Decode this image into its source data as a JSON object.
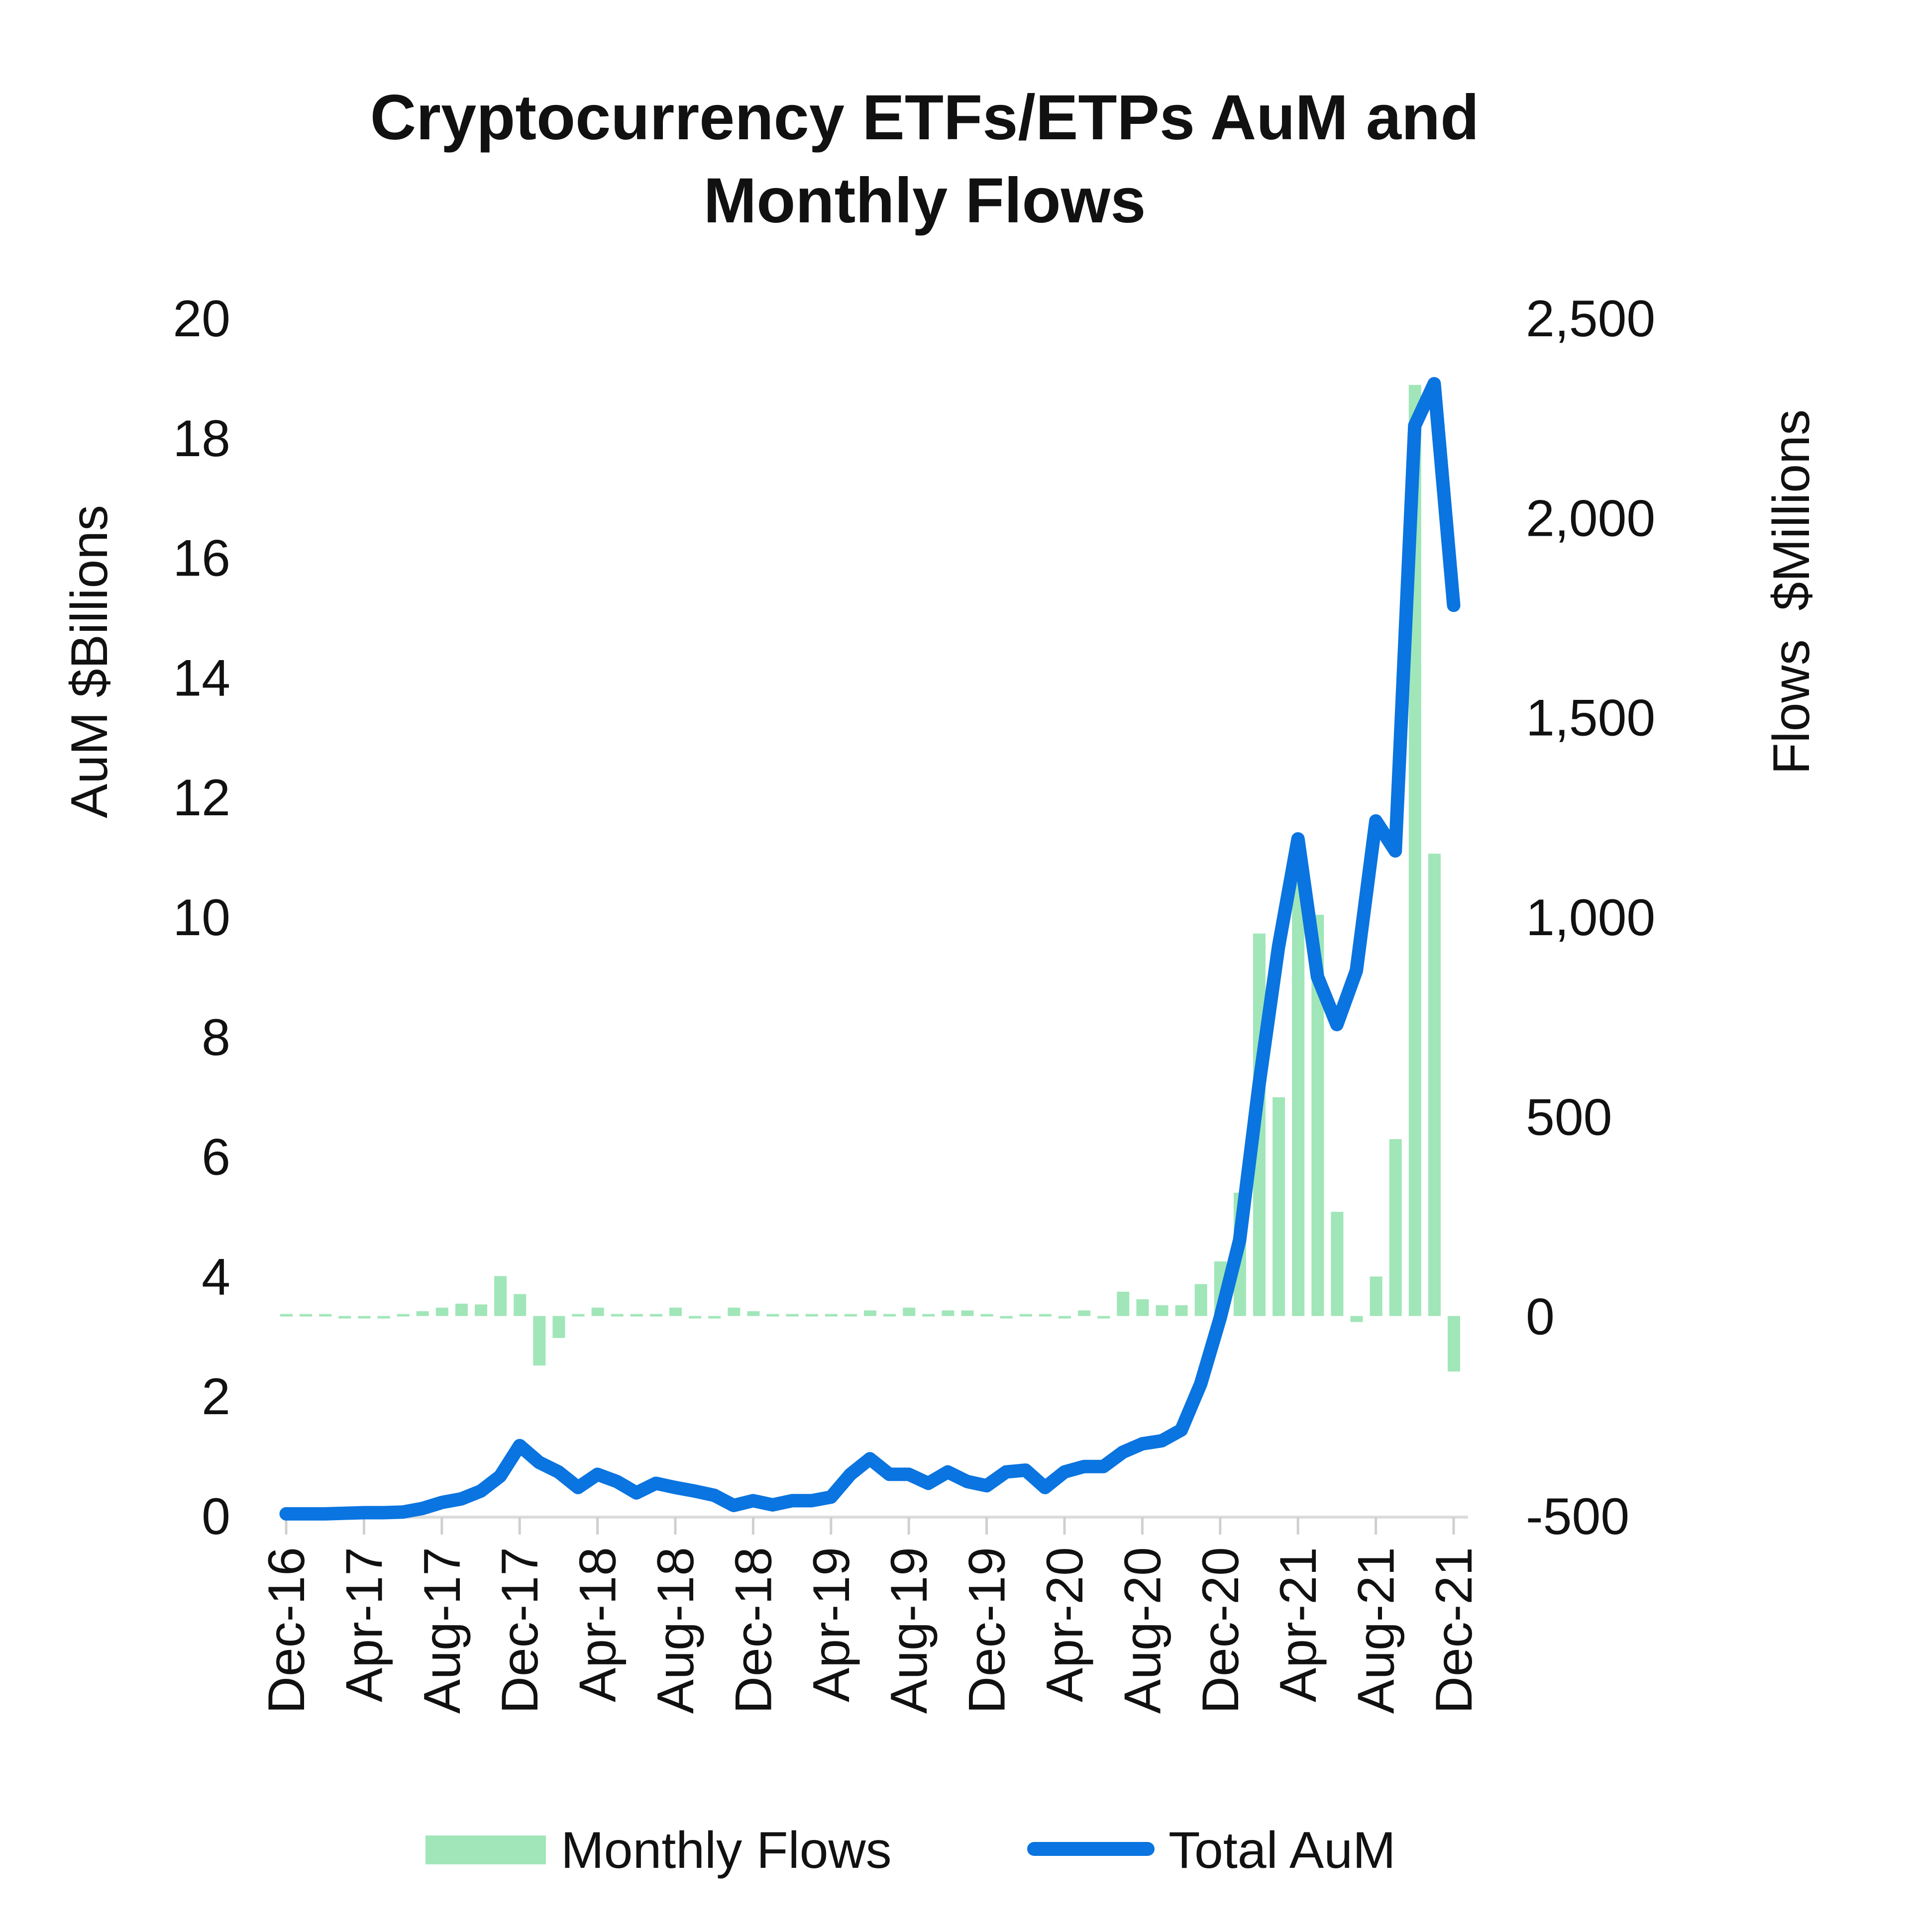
{
  "chart_data": {
    "type": "bar+line",
    "title": [
      "Cryptocurrency ETFs/ETPs AuM and",
      "Monthly Flows"
    ],
    "ylabel_left": "AuM $Billions",
    "ylabel_right": "Flows  $Millions",
    "ylim_left": [
      0,
      20
    ],
    "ylim_right": [
      -500,
      2500
    ],
    "yticks_left": [
      "0",
      "2",
      "4",
      "6",
      "8",
      "10",
      "12",
      "14",
      "16",
      "18",
      "20"
    ],
    "yticks_right": [
      "-500",
      "0",
      "500",
      "1,000",
      "1,500",
      "2,000",
      "2,500"
    ],
    "xtick_labels": [
      "Dec-16",
      "Apr-17",
      "Aug-17",
      "Dec-17",
      "Apr-18",
      "Aug-18",
      "Dec-18",
      "Apr-19",
      "Aug-19",
      "Dec-19",
      "Apr-20",
      "Aug-20",
      "Dec-20",
      "Apr-21",
      "Aug-21",
      "Dec-21"
    ],
    "x": [
      "Dec-16",
      "Jan-17",
      "Feb-17",
      "Mar-17",
      "Apr-17",
      "May-17",
      "Jun-17",
      "Jul-17",
      "Aug-17",
      "Sep-17",
      "Oct-17",
      "Nov-17",
      "Dec-17",
      "Jan-18",
      "Feb-18",
      "Mar-18",
      "Apr-18",
      "May-18",
      "Jun-18",
      "Jul-18",
      "Aug-18",
      "Sep-18",
      "Oct-18",
      "Nov-18",
      "Dec-18",
      "Jan-19",
      "Feb-19",
      "Mar-19",
      "Apr-19",
      "May-19",
      "Jun-19",
      "Jul-19",
      "Aug-19",
      "Sep-19",
      "Oct-19",
      "Nov-19",
      "Dec-19",
      "Jan-20",
      "Feb-20",
      "Mar-20",
      "Apr-20",
      "May-20",
      "Jun-20",
      "Jul-20",
      "Aug-20",
      "Sep-20",
      "Oct-20",
      "Nov-20",
      "Dec-20",
      "Jan-21",
      "Feb-21",
      "Mar-21",
      "Apr-21",
      "May-21",
      "Jun-21",
      "Jul-21",
      "Aug-21",
      "Sep-21",
      "Oct-21",
      "Nov-21",
      "Dec-21"
    ],
    "series": [
      {
        "name": "Monthly Flows",
        "type": "bar",
        "axis": "right",
        "color": "#a0e6b8",
        "values": [
          5,
          5,
          5,
          -5,
          -5,
          -5,
          5,
          12,
          21,
          31,
          29,
          100,
          55,
          -124,
          -55,
          5,
          21,
          5,
          5,
          5,
          21,
          -5,
          -5,
          21,
          12,
          5,
          5,
          5,
          5,
          5,
          14,
          5,
          21,
          5,
          14,
          14,
          5,
          -5,
          5,
          5,
          -5,
          14,
          -5,
          61,
          42,
          27,
          27,
          80,
          137,
          309,
          958,
          548,
          1090,
          1005,
          261,
          -15,
          99,
          443,
          2332,
          1158,
          -139
        ]
      },
      {
        "name": "Total AuM",
        "type": "line",
        "axis": "left",
        "color": "#0a74e0",
        "values": [
          0.03,
          0.03,
          0.03,
          0.04,
          0.05,
          0.05,
          0.06,
          0.12,
          0.22,
          0.28,
          0.41,
          0.66,
          1.17,
          0.89,
          0.73,
          0.47,
          0.69,
          0.57,
          0.38,
          0.54,
          0.47,
          0.41,
          0.34,
          0.17,
          0.25,
          0.18,
          0.25,
          0.25,
          0.31,
          0.69,
          0.95,
          0.69,
          0.69,
          0.54,
          0.73,
          0.57,
          0.5,
          0.73,
          0.76,
          0.47,
          0.73,
          0.82,
          0.82,
          1.06,
          1.2,
          1.25,
          1.43,
          2.2,
          3.3,
          4.6,
          7.2,
          9.5,
          11.3,
          9.0,
          8.2,
          9.1,
          11.6,
          11.1,
          18.2,
          18.9,
          15.2
        ]
      }
    ],
    "legend": {
      "position": "bottom",
      "items": [
        "Monthly Flows",
        "Total AuM"
      ]
    },
    "grid": false
  }
}
